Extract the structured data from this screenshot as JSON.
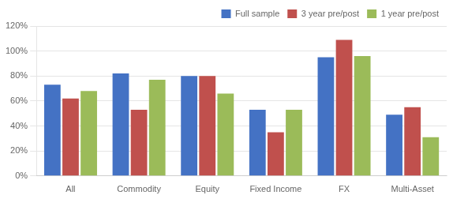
{
  "chart_data": {
    "type": "bar",
    "categories": [
      "All",
      "Commodity",
      "Equity",
      "Fixed Income",
      "FX",
      "Multi-Asset"
    ],
    "series": [
      {
        "name": "Full sample",
        "color": "#4472C4",
        "values": [
          0.73,
          0.82,
          0.8,
          0.53,
          0.95,
          0.49
        ]
      },
      {
        "name": "3 year pre/post",
        "color": "#C0504D",
        "values": [
          0.62,
          0.53,
          0.8,
          0.35,
          1.09,
          0.55
        ]
      },
      {
        "name": "1 year pre/post",
        "color": "#9BBB59",
        "values": [
          0.68,
          0.77,
          0.66,
          0.53,
          0.96,
          0.31
        ]
      }
    ],
    "ylim": [
      0,
      1.2
    ],
    "yticks": [
      {
        "value": 0,
        "label": "0%"
      },
      {
        "value": 0.2,
        "label": "20%"
      },
      {
        "value": 0.4,
        "label": "40%"
      },
      {
        "value": 0.6,
        "label": "60%"
      },
      {
        "value": 0.8,
        "label": "80%"
      },
      {
        "value": 1.0,
        "label": "100%"
      },
      {
        "value": 1.2,
        "label": "120%"
      }
    ],
    "grid": true,
    "legend": "upper right"
  }
}
